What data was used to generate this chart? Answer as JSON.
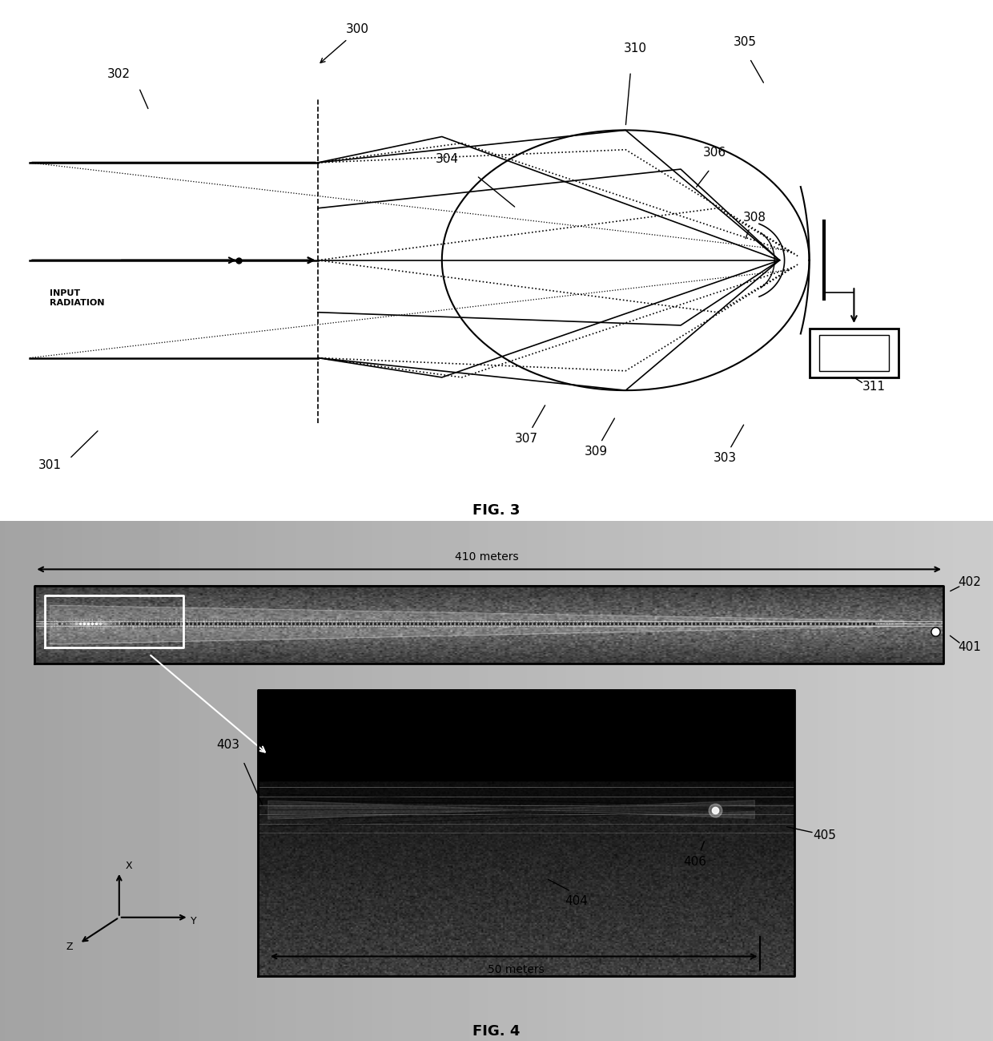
{
  "fig_width": 12.4,
  "fig_height": 12.99,
  "bg_color": "#ffffff",
  "fig3_label": "FIG. 3",
  "fig4_label": "FIG. 4",
  "labels_300": "300",
  "labels_302": "302",
  "labels_301": "301",
  "labels_304": "304",
  "labels_310": "310",
  "labels_305": "305",
  "labels_306": "306",
  "labels_308": "308",
  "labels_307": "307",
  "labels_309": "309",
  "labels_303": "303",
  "labels_311": "311",
  "input_radiation_text": "INPUT\nRADIATION",
  "labels_402": "402",
  "labels_401": "401",
  "labels_403": "403",
  "labels_404": "404",
  "labels_405": "405",
  "labels_406": "406",
  "text_410m": "410 meters",
  "text_50m": "50 meters"
}
